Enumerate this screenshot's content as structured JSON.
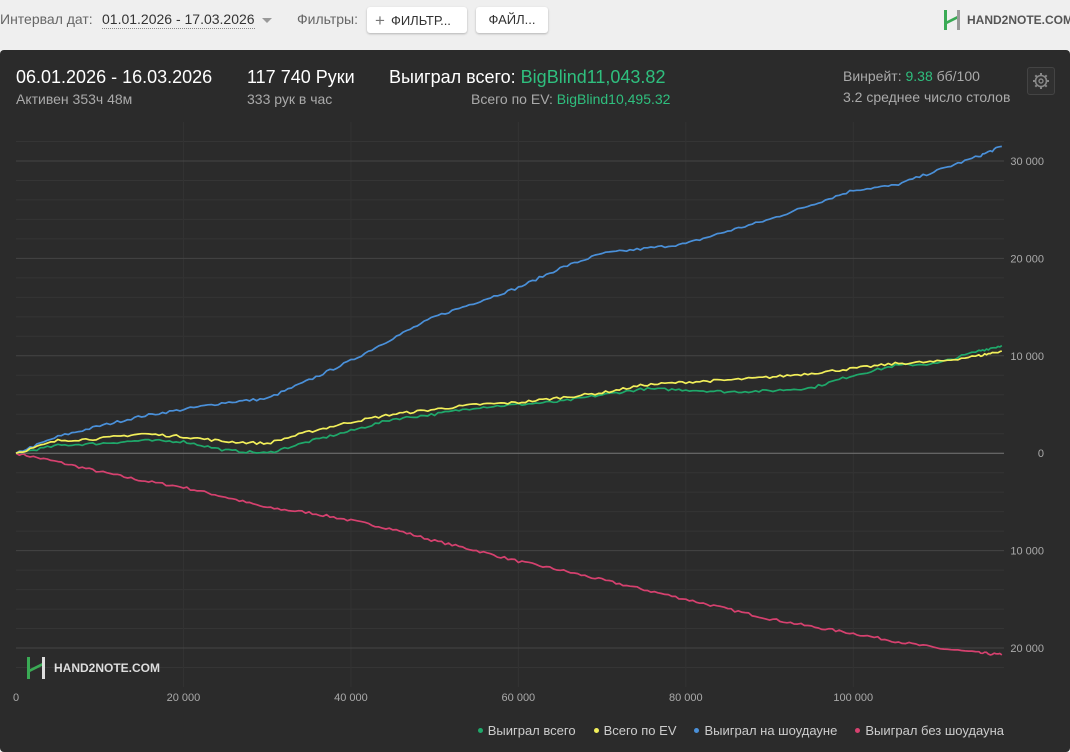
{
  "toolbar": {
    "date_interval_label": "Интервал дат:",
    "date_range": "01.01.2026 - 17.03.2026",
    "filters_label": "Фильтры:",
    "filter_button": "ФИЛЬТР...",
    "file_button": "ФАЙЛ...",
    "logo_text": "HAND2NOTE.COM"
  },
  "summary": {
    "period": "06.01.2026 - 16.03.2026",
    "active": "Активен 353ч 48м",
    "hands": "117 740 Руки",
    "hands_per_hour": "333 рук в час",
    "won_total_label": "Выиграл всего:",
    "won_total_value": "BigBlind11,043.82",
    "ev_total_label": "Всего по EV:",
    "ev_total_value": "BigBlind10,495.32",
    "winrate_label": "Винрейт:",
    "winrate_value": "9.38",
    "winrate_unit": "бб/100",
    "avg_tables": "3.2 среднее число столов"
  },
  "watermark": "HAND2NOTE.COM",
  "colors": {
    "won_total": "#1fa86a",
    "ev": "#f2ef5a",
    "showdown": "#4a90d9",
    "non_showdown": "#d6416f",
    "panel": "#2b2b2b"
  },
  "chart_data": {
    "type": "line",
    "xlim": [
      0,
      118000
    ],
    "ylim": [
      -24000,
      34000
    ],
    "x_ticks": [
      0,
      20000,
      40000,
      60000,
      80000,
      100000
    ],
    "x_tick_labels": [
      "0",
      "20 000",
      "40 000",
      "60 000",
      "80 000",
      "100 000"
    ],
    "y_ticks": [
      30000,
      20000,
      10000,
      0,
      -10000,
      -20000
    ],
    "y_tick_labels": [
      "30 000",
      "20 000",
      "10 000",
      "0",
      "10 000",
      "20 000"
    ],
    "grid": true,
    "legend_position": "bottom-right",
    "series": [
      {
        "name": "Выиграл всего",
        "key": "won_total",
        "x": [
          0,
          5000,
          10000,
          15000,
          20000,
          25000,
          30000,
          35000,
          40000,
          45000,
          50000,
          55000,
          60000,
          65000,
          70000,
          75000,
          80000,
          85000,
          90000,
          95000,
          100000,
          105000,
          110000,
          115000,
          117740
        ],
        "y": [
          0,
          800,
          1000,
          1300,
          1200,
          300,
          0,
          1200,
          2300,
          3500,
          4000,
          4700,
          5000,
          5300,
          6000,
          6600,
          6500,
          6300,
          6400,
          6700,
          8000,
          9000,
          9200,
          10500,
          11044
        ]
      },
      {
        "name": "Всего по EV",
        "key": "ev",
        "x": [
          0,
          5000,
          10000,
          15000,
          20000,
          25000,
          30000,
          35000,
          40000,
          45000,
          50000,
          55000,
          60000,
          65000,
          70000,
          75000,
          80000,
          85000,
          90000,
          95000,
          100000,
          105000,
          110000,
          115000,
          117740
        ],
        "y": [
          0,
          1300,
          1500,
          2000,
          1700,
          1200,
          1000,
          2200,
          3200,
          4000,
          4500,
          5000,
          5200,
          5700,
          6200,
          7000,
          7300,
          7500,
          7800,
          8200,
          8700,
          9200,
          9400,
          10000,
          10495
        ]
      },
      {
        "name": "Выиграл на шоудауне",
        "key": "showdown",
        "x": [
          0,
          5000,
          10000,
          15000,
          20000,
          25000,
          30000,
          35000,
          40000,
          45000,
          50000,
          55000,
          60000,
          65000,
          70000,
          75000,
          80000,
          85000,
          90000,
          95000,
          100000,
          105000,
          110000,
          115000,
          117740
        ],
        "y": [
          0,
          1700,
          2800,
          3800,
          4500,
          5200,
          5600,
          7500,
          9500,
          11800,
          14000,
          15500,
          17000,
          19000,
          20500,
          21000,
          21500,
          22800,
          24000,
          25500,
          27000,
          27500,
          29000,
          30500,
          31500
        ]
      },
      {
        "name": "Выиграл без шоудауна",
        "key": "non_showdown",
        "x": [
          0,
          5000,
          10000,
          15000,
          20000,
          25000,
          30000,
          35000,
          40000,
          45000,
          50000,
          55000,
          60000,
          65000,
          70000,
          75000,
          80000,
          85000,
          90000,
          95000,
          100000,
          105000,
          110000,
          115000,
          117740
        ],
        "y": [
          0,
          -900,
          -1900,
          -2800,
          -3500,
          -4500,
          -5600,
          -6100,
          -6900,
          -7800,
          -9000,
          -10000,
          -11100,
          -12000,
          -13000,
          -14000,
          -15000,
          -16000,
          -17000,
          -17800,
          -18500,
          -19300,
          -20000,
          -20500,
          -20700
        ]
      }
    ]
  }
}
